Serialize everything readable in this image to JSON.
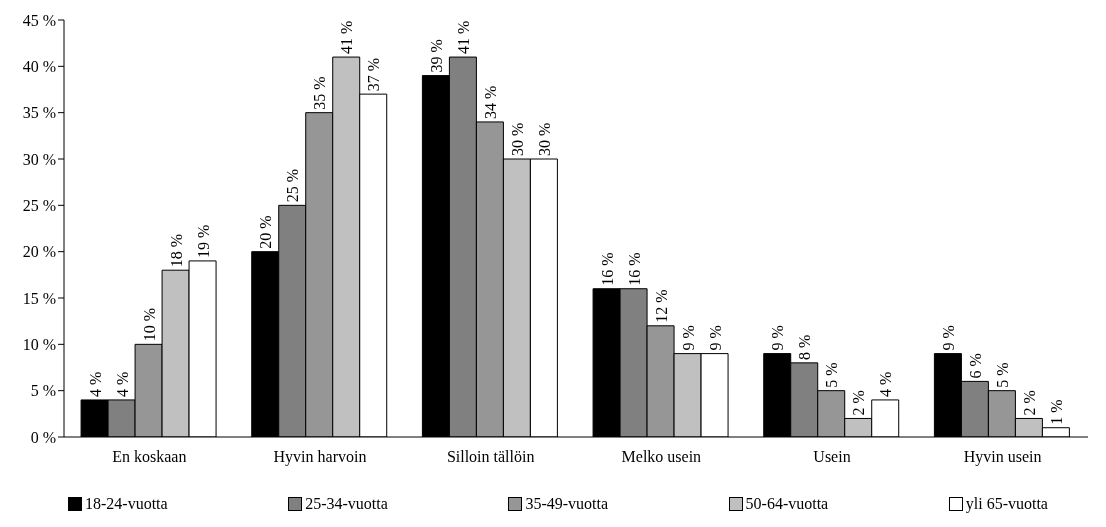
{
  "chart_data": {
    "type": "bar",
    "categories": [
      "En koskaan",
      "Hyvin harvoin",
      "Silloin tällöin",
      "Melko usein",
      "Usein",
      "Hyvin usein"
    ],
    "series": [
      {
        "name": "18-24-vuotta",
        "color": "#000000",
        "values": [
          4,
          20,
          39,
          16,
          9,
          9
        ],
        "value_labels": [
          "4 %",
          "20 %",
          "39 %",
          "16 %",
          "9 %",
          "9 %"
        ]
      },
      {
        "name": "25-34-vuotta",
        "color": "#808080",
        "values": [
          4,
          25,
          41,
          16,
          8,
          6
        ],
        "value_labels": [
          "4 %",
          "25 %",
          "41 %",
          "16 %",
          "8 %",
          "6 %"
        ]
      },
      {
        "name": "35-49-vuotta",
        "color": "#969696",
        "values": [
          10,
          35,
          34,
          12,
          5,
          5
        ],
        "value_labels": [
          "10 %",
          "35 %",
          "34 %",
          "12 %",
          "5 %",
          "5 %"
        ]
      },
      {
        "name": "50-64-vuotta",
        "color": "#c0c0c0",
        "values": [
          18,
          41,
          30,
          9,
          2,
          2
        ],
        "value_labels": [
          "18 %",
          "41 %",
          "30 %",
          "9 %",
          "2 %",
          "2 %"
        ]
      },
      {
        "name": "yli 65-vuotta",
        "color": "#ffffff",
        "values": [
          19,
          37,
          30,
          9,
          4,
          1
        ],
        "value_labels": [
          "19 %",
          "37 %",
          "30 %",
          "9 %",
          "4 %",
          "1 %"
        ]
      }
    ],
    "ylim": [
      0,
      45
    ],
    "yticks": [
      {
        "value": 0,
        "label": "0 %"
      },
      {
        "value": 5,
        "label": "5 %"
      },
      {
        "value": 10,
        "label": "10 %"
      },
      {
        "value": 15,
        "label": "15 %"
      },
      {
        "value": 20,
        "label": "20 %"
      },
      {
        "value": 25,
        "label": "25 %"
      },
      {
        "value": 30,
        "label": "30 %"
      },
      {
        "value": 35,
        "label": "35 %"
      },
      {
        "value": 40,
        "label": "40 %"
      },
      {
        "value": 45,
        "label": "45 %"
      }
    ],
    "grid": false,
    "legend": "bottom"
  }
}
